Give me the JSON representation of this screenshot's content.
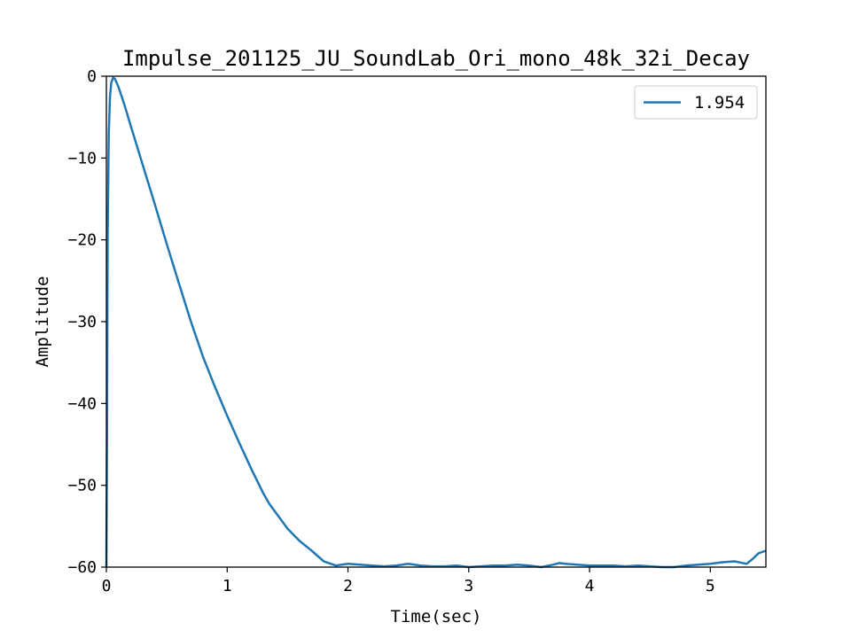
{
  "chart_data": {
    "type": "line",
    "title": "Impulse_201125_JU_SoundLab_Ori_mono_48k_32i_Decay",
    "xlabel": "Time(sec)",
    "ylabel": "Amplitude",
    "xlim": [
      0,
      5.46
    ],
    "ylim": [
      -60,
      0
    ],
    "xticks": [
      0,
      1,
      2,
      3,
      4,
      5
    ],
    "yticks": [
      0,
      -10,
      -20,
      -30,
      -40,
      -50,
      -60
    ],
    "grid": false,
    "legend_position": "top-right",
    "colors": {
      "line": "#1f77b4",
      "axes": "#000000",
      "background": "#ffffff"
    },
    "series": [
      {
        "name": "1.954",
        "x": [
          0.0,
          0.005,
          0.01,
          0.02,
          0.03,
          0.04,
          0.055,
          0.07,
          0.1,
          0.15,
          0.2,
          0.3,
          0.4,
          0.5,
          0.6,
          0.7,
          0.8,
          0.9,
          1.0,
          1.1,
          1.2,
          1.3,
          1.35,
          1.4,
          1.5,
          1.6,
          1.7,
          1.8,
          1.9,
          2.0,
          2.1,
          2.2,
          2.3,
          2.4,
          2.5,
          2.6,
          2.7,
          2.8,
          2.9,
          3.0,
          3.1,
          3.2,
          3.3,
          3.4,
          3.5,
          3.6,
          3.7,
          3.75,
          3.8,
          3.9,
          4.0,
          4.1,
          4.2,
          4.3,
          4.4,
          4.5,
          4.6,
          4.7,
          4.8,
          4.9,
          5.0,
          5.1,
          5.2,
          5.3,
          5.35,
          5.4,
          5.46
        ],
        "y": [
          -60.0,
          -45.0,
          -20.0,
          -7.0,
          -2.5,
          -0.8,
          -0.2,
          -0.3,
          -1.3,
          -3.5,
          -6.0,
          -10.8,
          -15.6,
          -20.5,
          -25.3,
          -30.0,
          -34.3,
          -38.0,
          -41.5,
          -44.8,
          -48.0,
          -51.0,
          -52.3,
          -53.3,
          -55.3,
          -56.8,
          -58.0,
          -59.3,
          -59.8,
          -59.6,
          -59.7,
          -59.8,
          -59.9,
          -59.8,
          -59.6,
          -59.8,
          -59.9,
          -59.9,
          -59.8,
          -60.0,
          -59.9,
          -59.8,
          -59.8,
          -59.7,
          -59.8,
          -60.0,
          -59.7,
          -59.5,
          -59.6,
          -59.7,
          -59.8,
          -59.8,
          -59.8,
          -59.9,
          -59.8,
          -59.9,
          -60.0,
          -60.0,
          -59.8,
          -59.7,
          -59.6,
          -59.4,
          -59.3,
          -59.6,
          -59.0,
          -58.3,
          -58.0
        ]
      }
    ]
  }
}
